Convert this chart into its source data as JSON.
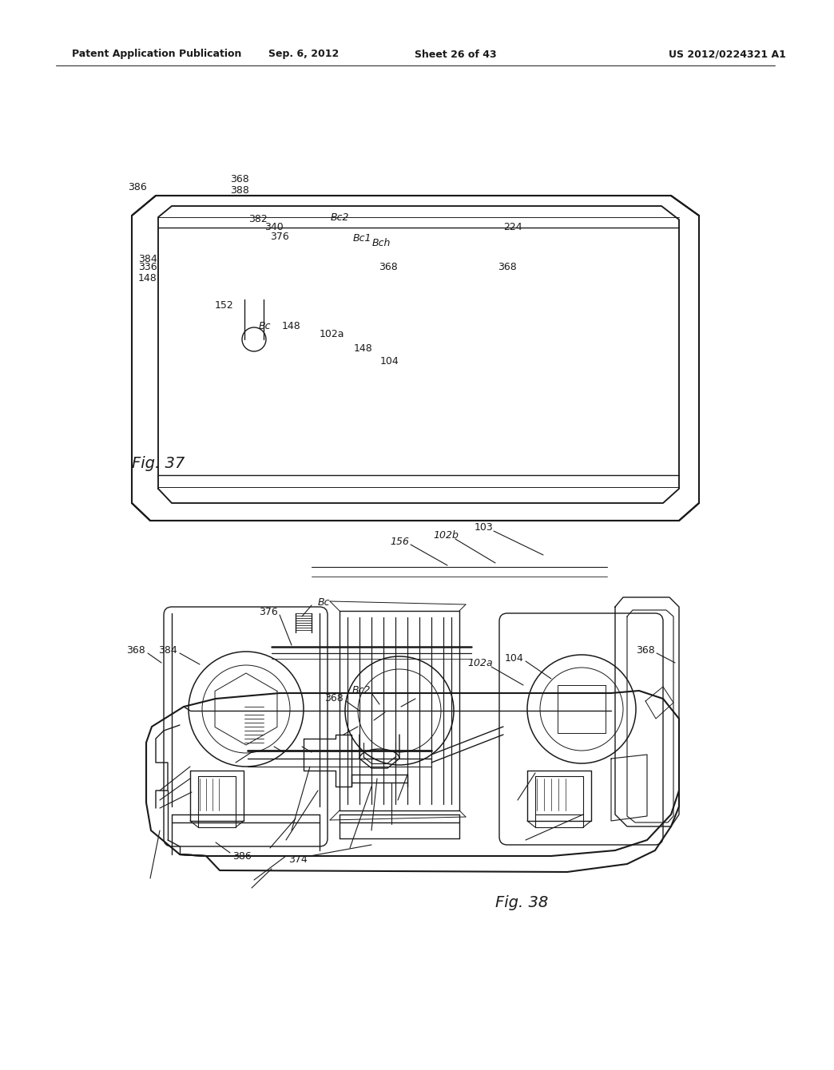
{
  "page_header_left": "Patent Application Publication",
  "page_header_center": "Sep. 6, 2012",
  "page_header_sheet": "Sheet 26 of 43",
  "page_header_right": "US 2012/0224321 A1",
  "fig37_label": "Fig. 37",
  "fig38_label": "Fig. 38",
  "background_color": "#ffffff",
  "text_color": "#1a1a1a",
  "line_color": "#1a1a1a"
}
